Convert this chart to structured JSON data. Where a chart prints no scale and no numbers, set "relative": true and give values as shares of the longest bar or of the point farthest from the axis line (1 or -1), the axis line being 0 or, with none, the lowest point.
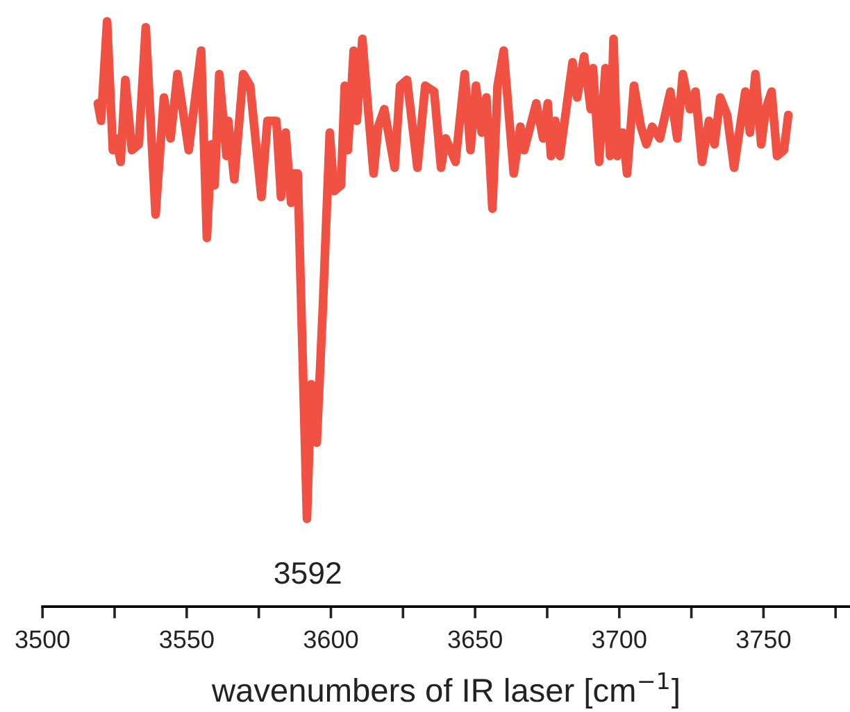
{
  "chart_data": {
    "type": "line",
    "relative": true,
    "xlabel": "wavenumbers of IR laser [cm$^{−1}$]",
    "xlim": [
      3500,
      3780
    ],
    "xticks": [
      3500,
      {
        "value": 3525,
        "label": null
      },
      3550,
      {
        "value": 3575,
        "label": null
      },
      3600,
      {
        "value": 3625,
        "label": null
      },
      3650,
      {
        "value": 3675,
        "label": null
      },
      3700,
      {
        "value": 3725,
        "label": null
      },
      3750,
      {
        "value": 3775,
        "label": null
      }
    ],
    "tick_labels": "x",
    "grid": false,
    "marker": "none",
    "line_style": "solid",
    "annotations": [
      {
        "text": "3592",
        "x": 3592,
        "y": 0.15
      }
    ],
    "series": [
      {
        "color": "#f05142",
        "x": [
          3519.2,
          3520.3,
          3522.4,
          3524.4,
          3525.5,
          3527.1,
          3528.7,
          3531.0,
          3533.4,
          3535.8,
          3539.2,
          3542.1,
          3544.4,
          3546.8,
          3550.7,
          3555.0,
          3557.0,
          3558.6,
          3559.7,
          3561.3,
          3563.8,
          3564.4,
          3566.5,
          3569.6,
          3572.0,
          3575.9,
          3578.0,
          3581.1,
          3582.7,
          3584.3,
          3586.2,
          3587.0,
          3588.5,
          3591.7,
          3593.2,
          3595.1,
          3597.2,
          3599.6,
          3601.1,
          3603.5,
          3604.8,
          3605.9,
          3607.9,
          3609.0,
          3610.9,
          3612.9,
          3614.8,
          3616.4,
          3618.5,
          3622.1,
          3624.0,
          3626.4,
          3630.0,
          3632.7,
          3635.8,
          3638.2,
          3639.8,
          3643.2,
          3646.4,
          3648.4,
          3650.3,
          3652.3,
          3653.9,
          3656.0,
          3657.8,
          3659.9,
          3663.4,
          3665.7,
          3667.0,
          3671.2,
          3673.6,
          3675.2,
          3676.3,
          3677.8,
          3679.4,
          3683.8,
          3685.4,
          3687.8,
          3690.1,
          3690.9,
          3693.0,
          3695.2,
          3696.8,
          3698.0,
          3699.3,
          3701.2,
          3702.7,
          3705.1,
          3707.5,
          3709.4,
          3711.4,
          3714.1,
          3717.7,
          3720.1,
          3722.0,
          3724.5,
          3726.4,
          3728.7,
          3731.1,
          3733.0,
          3735.0,
          3737.4,
          3739.8,
          3743.7,
          3745.3,
          3747.2,
          3749.2,
          3750.8,
          3752.8,
          3754.7,
          3757.1,
          3758.6
        ],
        "values": [
          0.86,
          0.83,
          1.0,
          0.78,
          0.8,
          0.76,
          0.9,
          0.78,
          0.79,
          0.99,
          0.67,
          0.87,
          0.8,
          0.91,
          0.78,
          0.95,
          0.63,
          0.79,
          0.72,
          0.91,
          0.77,
          0.83,
          0.73,
          0.91,
          0.89,
          0.7,
          0.83,
          0.83,
          0.7,
          0.81,
          0.69,
          0.74,
          0.74,
          0.15,
          0.38,
          0.28,
          0.51,
          0.81,
          0.71,
          0.72,
          0.89,
          0.78,
          0.95,
          0.83,
          0.97,
          0.85,
          0.74,
          0.82,
          0.85,
          0.75,
          0.89,
          0.9,
          0.75,
          0.89,
          0.88,
          0.75,
          0.8,
          0.76,
          0.91,
          0.78,
          0.89,
          0.81,
          0.87,
          0.68,
          0.89,
          0.95,
          0.74,
          0.82,
          0.78,
          0.86,
          0.8,
          0.86,
          0.77,
          0.83,
          0.77,
          0.93,
          0.87,
          0.94,
          0.85,
          0.92,
          0.76,
          0.92,
          0.77,
          0.97,
          0.77,
          0.81,
          0.74,
          0.89,
          0.82,
          0.79,
          0.82,
          0.8,
          0.88,
          0.8,
          0.91,
          0.85,
          0.88,
          0.76,
          0.83,
          0.79,
          0.87,
          0.84,
          0.75,
          0.88,
          0.81,
          0.91,
          0.79,
          0.85,
          0.88,
          0.77,
          0.78,
          0.84
        ]
      }
    ]
  }
}
